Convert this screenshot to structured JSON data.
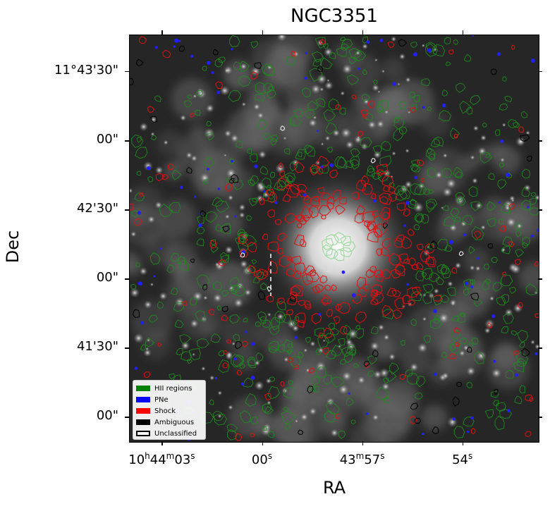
{
  "chart_data": {
    "type": "image",
    "title": "NGC3351",
    "xlabel": "RA",
    "ylabel": "Dec",
    "x_ticks": [
      {
        "label_main": "10",
        "h": "h",
        "rest": "44",
        "m": "m",
        "sec": "03",
        "s": "s",
        "frac": 0.08
      },
      {
        "label_main": "00",
        "s": "s",
        "frac": 0.325
      },
      {
        "label_main": "43",
        "m": "m",
        "sec": "57",
        "s": "s",
        "frac": 0.57
      },
      {
        "label_main": "54",
        "s": "s",
        "frac": 0.815
      }
    ],
    "y_ticks": [
      {
        "label": "11°43'30\"",
        "frac": 0.09
      },
      {
        "label": "00\"",
        "frac": 0.26
      },
      {
        "label": "42'30\"",
        "frac": 0.43
      },
      {
        "label": "00\"",
        "frac": 0.6
      },
      {
        "label": "41'30\"",
        "frac": 0.77
      },
      {
        "label": "00\"",
        "frac": 0.94
      }
    ],
    "legend": {
      "placement": "lower-left",
      "entries": [
        {
          "label": "HII regions",
          "color": "#008000",
          "filled": true
        },
        {
          "label": "PNe",
          "color": "#0000ff",
          "filled": true
        },
        {
          "label": "Shock",
          "color": "#ff0000",
          "filled": true
        },
        {
          "label": "Ambiguous",
          "color": "#000000",
          "filled": true
        },
        {
          "label": "Unclassified",
          "color": "#ffffff",
          "filled": false
        }
      ]
    },
    "colors": {
      "hii": "#1f8a1f",
      "pne": "#2020ff",
      "shock": "#e01010",
      "ambiguous": "#000000",
      "unclassified": "#ffffff"
    }
  }
}
